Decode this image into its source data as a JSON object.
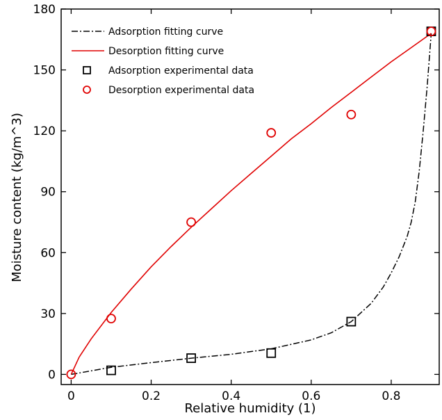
{
  "chart_data": {
    "type": "line",
    "xlabel": "Relative humidity (1)",
    "ylabel": "Moisture content (kg/m^3)",
    "xlim": [
      -0.025,
      0.92
    ],
    "ylim": [
      -5,
      180
    ],
    "xticks": [
      0,
      0.2,
      0.4,
      0.6,
      0.8
    ],
    "xtick_labels": [
      "0",
      "0.2",
      "0.4",
      "0.6",
      "0.8"
    ],
    "yticks": [
      0,
      30,
      60,
      90,
      120,
      150,
      180
    ],
    "ytick_labels": [
      "0",
      "30",
      "60",
      "90",
      "120",
      "150",
      "180"
    ],
    "grid": false,
    "legend_position": "top-left",
    "series": [
      {
        "name": "Adsorption fitting curve",
        "kind": "line",
        "style": "dash-dot",
        "color": "#000000",
        "x": [
          0,
          0.1,
          0.2,
          0.3,
          0.4,
          0.5,
          0.6,
          0.65,
          0.7,
          0.75,
          0.78,
          0.8,
          0.82,
          0.84,
          0.85,
          0.86,
          0.87,
          0.88,
          0.89,
          0.9
        ],
        "y": [
          0,
          3.5,
          5.8,
          8.0,
          9.9,
          12.6,
          17.0,
          20.5,
          26.0,
          35.0,
          43.0,
          50.0,
          58.0,
          68.0,
          75.0,
          85.0,
          100.0,
          120.0,
          142.0,
          168.0
        ]
      },
      {
        "name": "Desorption fitting curve",
        "kind": "line",
        "style": "solid",
        "color": "#e00000",
        "x": [
          0,
          0.02,
          0.05,
          0.1,
          0.15,
          0.2,
          0.25,
          0.3,
          0.35,
          0.4,
          0.45,
          0.5,
          0.55,
          0.6,
          0.65,
          0.7,
          0.75,
          0.8,
          0.85,
          0.9
        ],
        "y": [
          0,
          8.5,
          17.5,
          30.5,
          42.0,
          53.0,
          63.0,
          72.5,
          81.5,
          90.5,
          99.0,
          107.5,
          116.0,
          123.5,
          131.5,
          139.0,
          146.5,
          154.0,
          161.0,
          168.0
        ]
      },
      {
        "name": "Adsorption experimental data",
        "kind": "scatter",
        "marker": "square",
        "color": "#000000",
        "x": [
          0.1,
          0.3,
          0.5,
          0.7,
          0.9
        ],
        "y": [
          2,
          8,
          10.5,
          26,
          169
        ]
      },
      {
        "name": "Desorption experimental data",
        "kind": "scatter",
        "marker": "circle",
        "color": "#e00000",
        "x": [
          0,
          0.1,
          0.3,
          0.5,
          0.7,
          0.9
        ],
        "y": [
          0,
          27.5,
          75,
          119,
          128,
          169
        ]
      }
    ]
  }
}
